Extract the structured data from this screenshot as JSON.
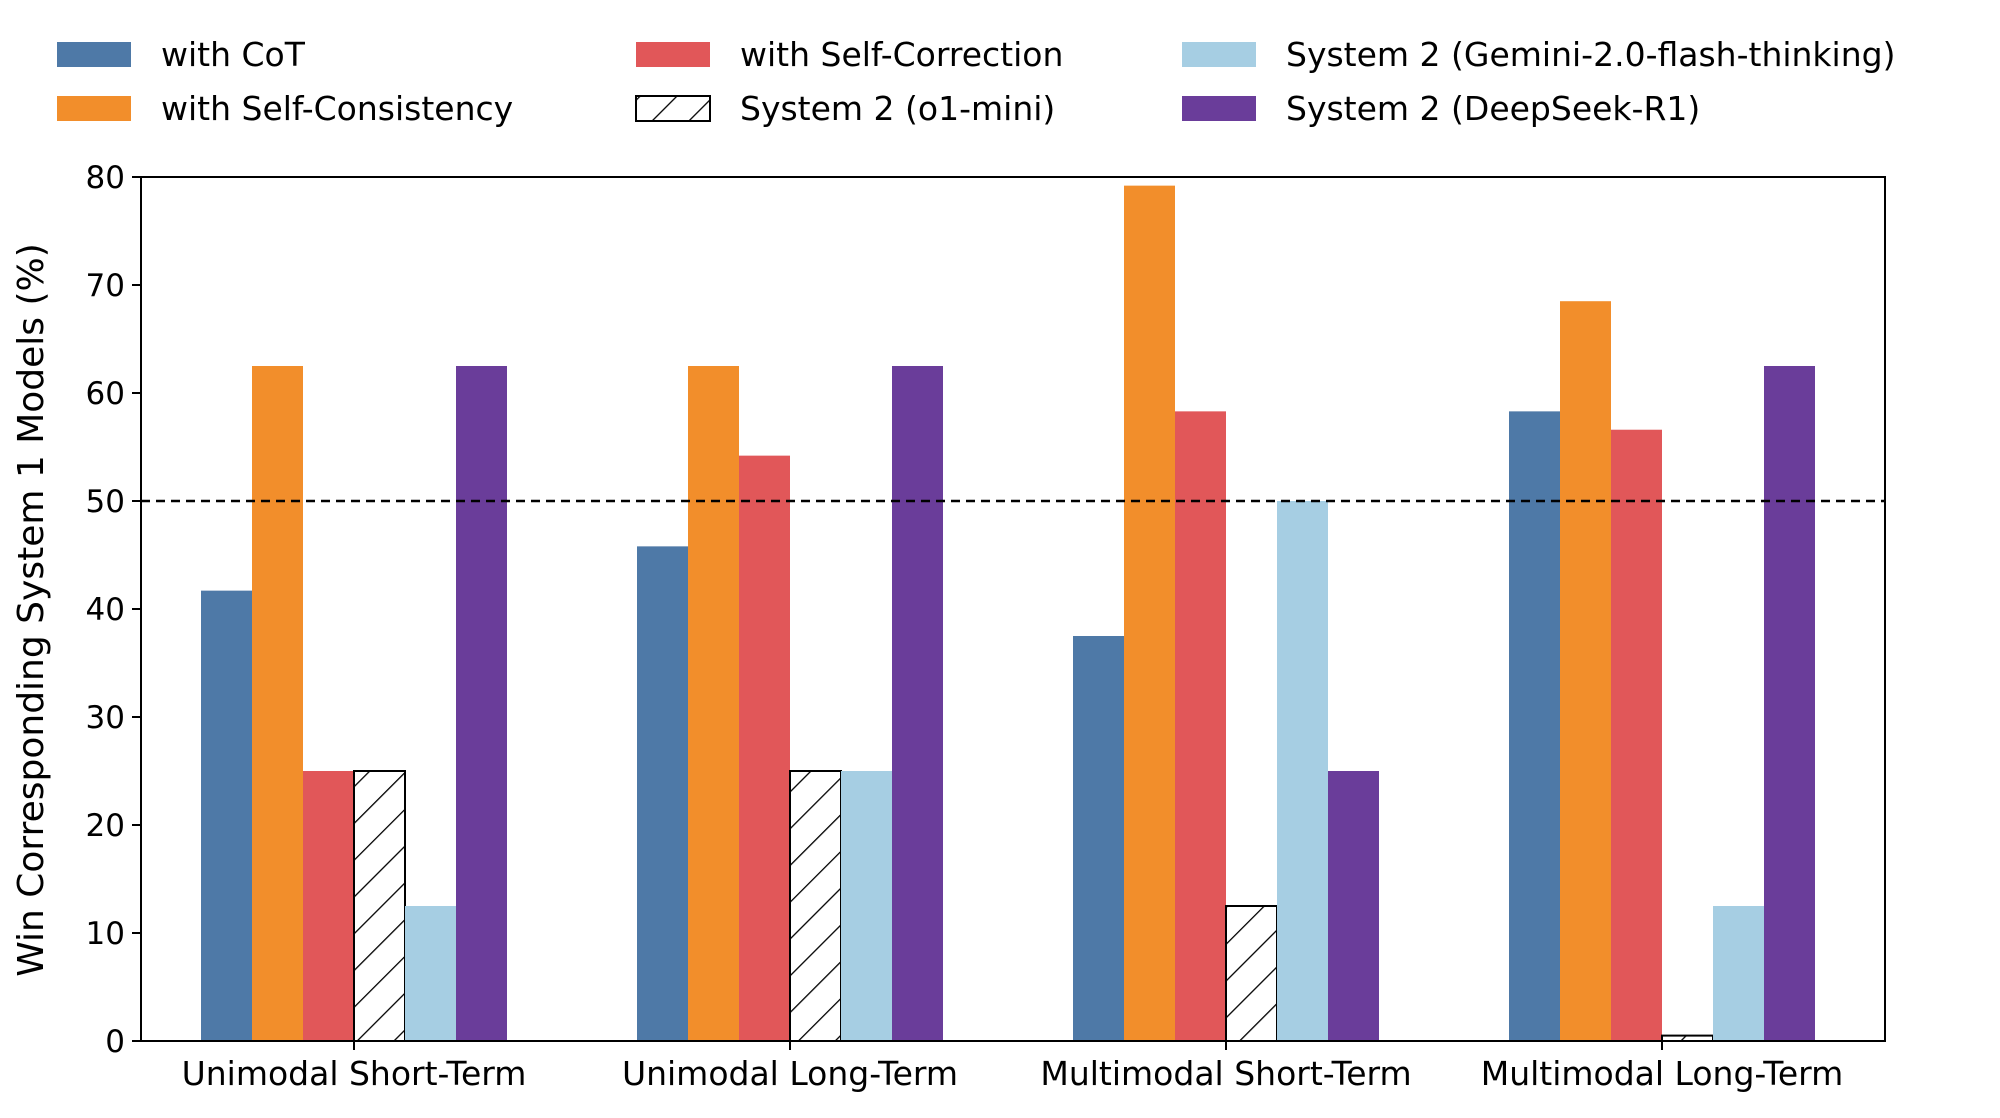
{
  "chart_data": {
    "type": "bar",
    "title": "",
    "xlabel": "",
    "ylabel": "Win Corresponding System 1 Models (%)",
    "ylim": [
      0,
      80
    ],
    "yticks": [
      0,
      10,
      20,
      30,
      40,
      50,
      60,
      70,
      80
    ],
    "grid": false,
    "legend_position": "top (outside plot, 3 columns)",
    "reference_line": {
      "y": 50,
      "style": "dashed",
      "color": "#000000"
    },
    "categories": [
      "Unimodal Short-Term",
      "Unimodal Long-Term",
      "Multimodal Short-Term",
      "Multimodal Long-Term"
    ],
    "series": [
      {
        "name": "with CoT",
        "color": "#4e79a7",
        "hatch": false,
        "values": [
          41.7,
          45.8,
          37.5,
          58.3
        ]
      },
      {
        "name": "with Self-Consistency",
        "color": "#f28e2b",
        "hatch": false,
        "values": [
          62.5,
          62.5,
          79.2,
          68.5
        ]
      },
      {
        "name": "with Self-Correction",
        "color": "#e15759",
        "hatch": false,
        "values": [
          25.0,
          54.2,
          58.3,
          56.6
        ]
      },
      {
        "name": "System 2 (o1-mini)",
        "color": "#ffffff",
        "hatch": true,
        "values": [
          25.0,
          25.0,
          12.5,
          0.5
        ]
      },
      {
        "name": "System 2 (Gemini-2.0-flash-thinking)",
        "color": "#a6cee3",
        "hatch": false,
        "values": [
          12.5,
          25.0,
          50.0,
          12.5
        ]
      },
      {
        "name": "System 2 (DeepSeek-R1)",
        "color": "#6a3d9a",
        "hatch": false,
        "values": [
          62.5,
          62.5,
          25.0,
          62.5
        ]
      }
    ]
  }
}
